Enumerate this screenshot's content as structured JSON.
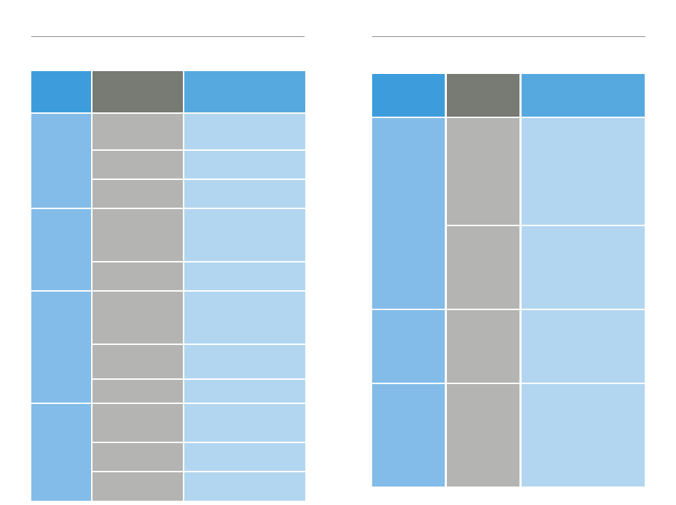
{
  "colors": {
    "header_primary": "#3d9ddc",
    "header_secondary": "#787a74",
    "header_tertiary": "#56a9df",
    "group_cell": "#83bce8",
    "sub_cell": "#b4b4b3",
    "detail_cell": "#b2d6f0",
    "rule": "#8a8a8a"
  },
  "left_table": {
    "header": [
      "",
      "",
      ""
    ],
    "groups": [
      {
        "label": "",
        "rows": [
          {
            "sub": "",
            "detail": ""
          },
          {
            "sub": "",
            "detail": ""
          },
          {
            "sub": "",
            "detail": ""
          }
        ]
      },
      {
        "label": "",
        "rows": [
          {
            "sub": "",
            "detail": ""
          },
          {
            "sub": "",
            "detail": ""
          }
        ]
      },
      {
        "label": "",
        "rows": [
          {
            "sub": "",
            "detail": ""
          },
          {
            "sub": "",
            "detail": ""
          },
          {
            "sub": "",
            "detail": ""
          }
        ]
      },
      {
        "label": "",
        "rows": [
          {
            "sub": "",
            "detail": ""
          },
          {
            "sub": "",
            "detail": ""
          },
          {
            "sub": "",
            "detail": ""
          }
        ]
      }
    ]
  },
  "right_table": {
    "header": [
      "",
      "",
      ""
    ],
    "groups": [
      {
        "label": "",
        "rows": [
          {
            "sub": "",
            "detail": ""
          },
          {
            "sub": "",
            "detail": ""
          }
        ]
      },
      {
        "label": "",
        "rows": [
          {
            "sub": "",
            "detail": ""
          }
        ]
      },
      {
        "label": "",
        "rows": [
          {
            "sub": "",
            "detail": ""
          }
        ]
      }
    ]
  }
}
